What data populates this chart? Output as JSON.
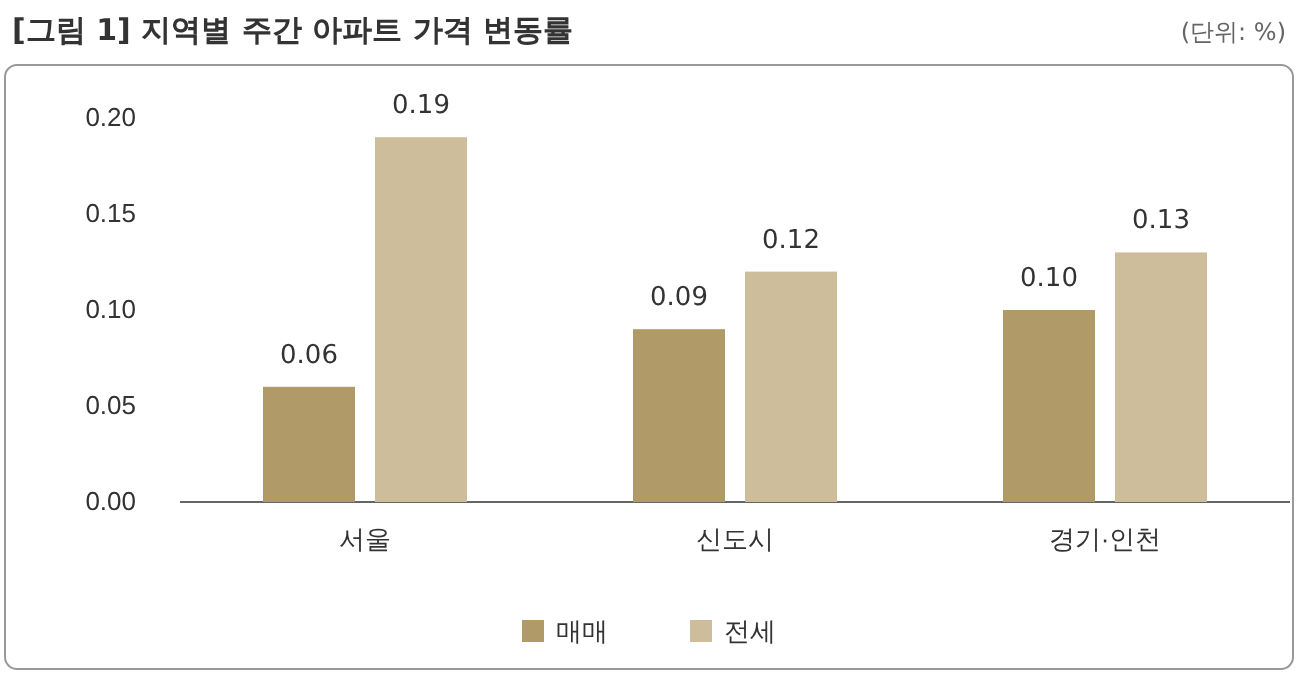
{
  "chart_data": {
    "type": "bar",
    "title": "[그림 1] 지역별 주간 아파트 가격 변동률",
    "annotations": [
      "(단위: %)"
    ],
    "categories": [
      "서울",
      "신도시",
      "경기·인천"
    ],
    "series": [
      {
        "name": "매매",
        "color": "#b09a68",
        "values": [
          0.06,
          0.09,
          0.1
        ],
        "value_labels": [
          "0.06",
          "0.09",
          "0.10"
        ]
      },
      {
        "name": "전세",
        "color": "#cdbd9a",
        "values": [
          0.19,
          0.12,
          0.13
        ],
        "value_labels": [
          "0.19",
          "0.12",
          "0.13"
        ]
      }
    ],
    "ylim": [
      0,
      0.2
    ],
    "yticks": [
      {
        "value": 0,
        "label": "0.00"
      },
      {
        "value": 0.05,
        "label": "0.05"
      },
      {
        "value": 0.1,
        "label": "0.10"
      },
      {
        "value": 0.15,
        "label": "0.15"
      },
      {
        "value": 0.2,
        "label": "0.20"
      }
    ],
    "legend": "bottom",
    "grid": false
  }
}
